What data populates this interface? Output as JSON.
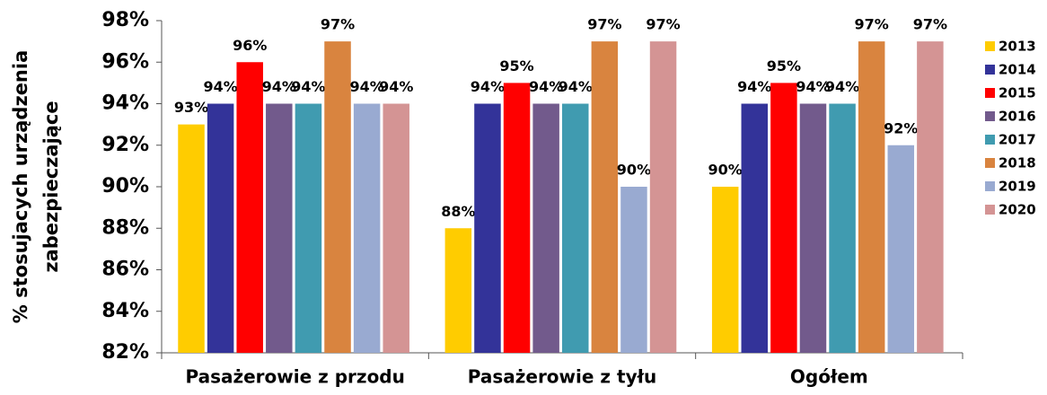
{
  "chart_data": {
    "type": "bar",
    "y_label": [
      "% stosujacych urządzenia",
      "zabezpieczające"
    ],
    "categories": [
      "Pasażerowie z przodu",
      "Pasażerowie z tyłu",
      "Ogółem"
    ],
    "ylim": [
      82,
      98
    ],
    "yticks": [
      {
        "value": 82,
        "label": "82%"
      },
      {
        "value": 84,
        "label": "84%"
      },
      {
        "value": 86,
        "label": "86%"
      },
      {
        "value": 88,
        "label": "88%"
      },
      {
        "value": 90,
        "label": "90%"
      },
      {
        "value": 92,
        "label": "92%"
      },
      {
        "value": 94,
        "label": "94%"
      },
      {
        "value": 96,
        "label": "96%"
      },
      {
        "value": 98,
        "label": "98%"
      }
    ],
    "legend": "right",
    "series": [
      {
        "name": "2013",
        "color": "#ffcc00",
        "values": [
          93,
          88,
          90
        ],
        "value_labels": [
          "93%",
          "88%",
          "90%"
        ]
      },
      {
        "name": "2014",
        "color": "#333399",
        "values": [
          94,
          94,
          94
        ],
        "value_labels": [
          "94%",
          "94%",
          "94%"
        ]
      },
      {
        "name": "2015",
        "color": "#ff0000",
        "values": [
          96,
          95,
          95
        ],
        "value_labels": [
          "96%",
          "95%",
          "95%"
        ]
      },
      {
        "name": "2016",
        "color": "#725a8c",
        "values": [
          94,
          94,
          94
        ],
        "value_labels": [
          "94%",
          "94%",
          "94%"
        ]
      },
      {
        "name": "2017",
        "color": "#409bb0",
        "values": [
          94,
          94,
          94
        ],
        "value_labels": [
          "94%",
          "94%",
          "94%"
        ]
      },
      {
        "name": "2018",
        "color": "#d9843f",
        "values": [
          97,
          97,
          97
        ],
        "value_labels": [
          "97%",
          "97%",
          "97%"
        ]
      },
      {
        "name": "2019",
        "color": "#99aad1",
        "values": [
          94,
          90,
          92
        ],
        "value_labels": [
          "94%",
          "90%",
          "92%"
        ]
      },
      {
        "name": "2020",
        "color": "#d49494",
        "values": [
          94,
          97,
          97
        ],
        "value_labels": [
          "94%",
          "97%",
          "97%"
        ]
      }
    ]
  }
}
